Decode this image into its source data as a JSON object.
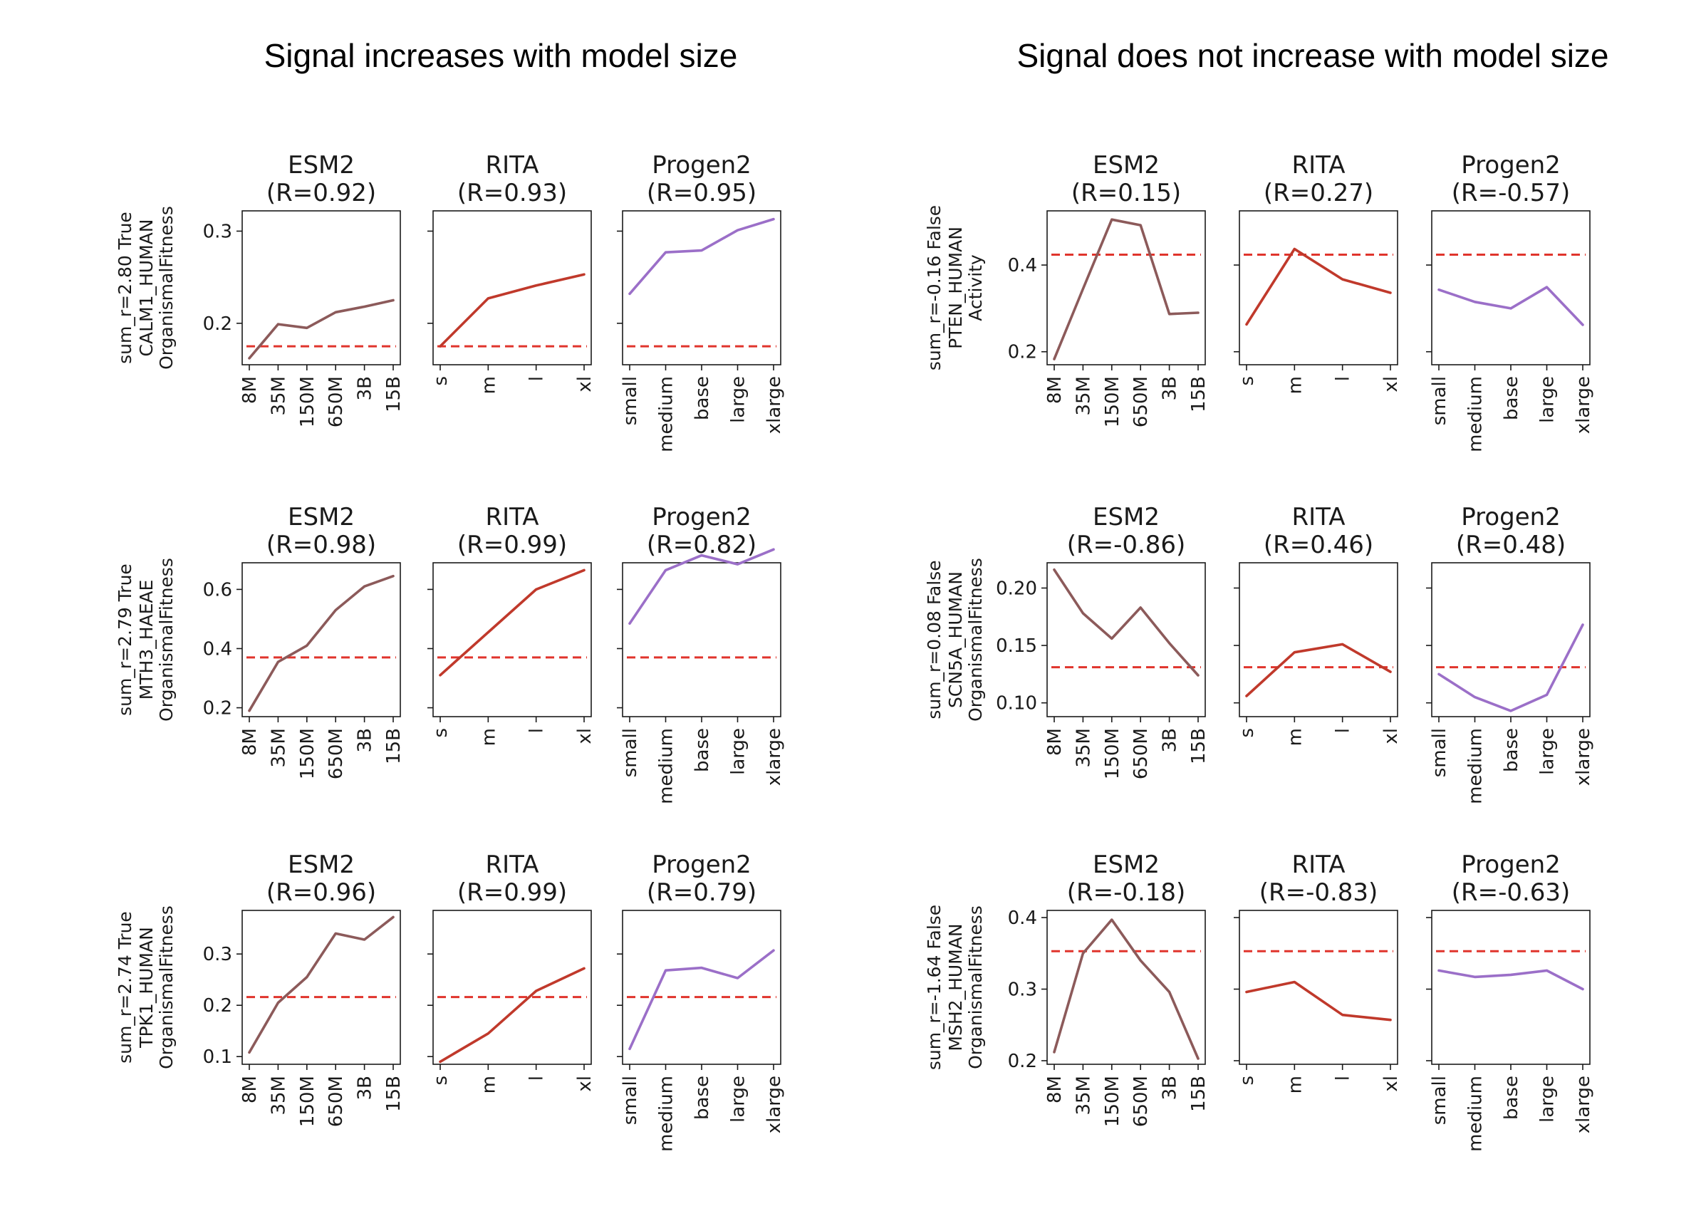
{
  "groups": [
    {
      "title": "Signal increases with model size",
      "rows": [
        {
          "label": {
            "line1": "sum_r=2.80     True",
            "line2": "CALM1_HUMAN",
            "line3": "OrganismalFitness"
          },
          "ylim": [
            0.155,
            0.322
          ],
          "yticks": [
            0.2,
            0.3
          ],
          "ytick_labels": [
            "0.2",
            "0.3"
          ],
          "threshold": 0.175,
          "panels": [
            {
              "model": "ESM2",
              "r_label": "(R=0.92)",
              "x": [
                "8M",
                "35M",
                "150M",
                "650M",
                "3B",
                "15B"
              ],
              "values": [
                0.162,
                0.199,
                0.195,
                0.212,
                0.218,
                0.225
              ]
            },
            {
              "model": "RITA",
              "r_label": "(R=0.93)",
              "x": [
                "s",
                "m",
                "l",
                "xl"
              ],
              "values": [
                0.175,
                0.227,
                0.241,
                0.253
              ]
            },
            {
              "model": "Progen2",
              "r_label": "(R=0.95)",
              "x": [
                "small",
                "medium",
                "base",
                "large",
                "xlarge"
              ],
              "values": [
                0.232,
                0.277,
                0.279,
                0.301,
                0.313
              ]
            }
          ]
        },
        {
          "label": {
            "line1": "sum_r=2.79     True",
            "line2": "MTH3_HAEAE",
            "line3": "OrganismalFitness"
          },
          "ylim": [
            0.17,
            0.69
          ],
          "yticks": [
            0.2,
            0.4,
            0.6
          ],
          "ytick_labels": [
            "0.2",
            "0.4",
            "0.6"
          ],
          "threshold": 0.37,
          "panels": [
            {
              "model": "ESM2",
              "r_label": "(R=0.98)",
              "x": [
                "8M",
                "35M",
                "150M",
                "650M",
                "3B",
                "15B"
              ],
              "values": [
                0.19,
                0.355,
                0.41,
                0.53,
                0.61,
                0.645
              ]
            },
            {
              "model": "RITA",
              "r_label": "(R=0.99)",
              "x": [
                "s",
                "m",
                "l",
                "xl"
              ],
              "values": [
                0.31,
                0.455,
                0.6,
                0.665
              ]
            },
            {
              "model": "Progen2",
              "r_label": "(R=0.82)",
              "x": [
                "small",
                "medium",
                "base",
                "large",
                "xlarge"
              ],
              "values": [
                0.485,
                0.665,
                0.715,
                0.685,
                0.735
              ]
            }
          ]
        },
        {
          "label": {
            "line1": "sum_r=2.74     True",
            "line2": "TPK1_HUMAN",
            "line3": "OrganismalFitness"
          },
          "ylim": [
            0.085,
            0.385
          ],
          "yticks": [
            0.1,
            0.2,
            0.3
          ],
          "ytick_labels": [
            "0.1",
            "0.2",
            "0.3"
          ],
          "threshold": 0.216,
          "panels": [
            {
              "model": "ESM2",
              "r_label": "(R=0.96)",
              "x": [
                "8M",
                "35M",
                "150M",
                "650M",
                "3B",
                "15B"
              ],
              "values": [
                0.108,
                0.205,
                0.255,
                0.34,
                0.328,
                0.372
              ]
            },
            {
              "model": "RITA",
              "r_label": "(R=0.99)",
              "x": [
                "s",
                "m",
                "l",
                "xl"
              ],
              "values": [
                0.09,
                0.145,
                0.228,
                0.272
              ]
            },
            {
              "model": "Progen2",
              "r_label": "(R=0.79)",
              "x": [
                "small",
                "medium",
                "base",
                "large",
                "xlarge"
              ],
              "values": [
                0.115,
                0.268,
                0.273,
                0.253,
                0.307
              ]
            }
          ]
        }
      ]
    },
    {
      "title": "Signal does not increase with model size",
      "rows": [
        {
          "label": {
            "line1": "sum_r=-0.16     False",
            "line2": "PTEN_HUMAN",
            "line3": "Activity"
          },
          "ylim": [
            0.17,
            0.525
          ],
          "yticks": [
            0.2,
            0.4
          ],
          "ytick_labels": [
            "0.2",
            "0.4"
          ],
          "threshold": 0.424,
          "panels": [
            {
              "model": "ESM2",
              "r_label": "(R=0.15)",
              "x": [
                "8M",
                "35M",
                "150M",
                "650M",
                "3B",
                "15B"
              ],
              "values": [
                0.183,
                0.345,
                0.505,
                0.492,
                0.287,
                0.29
              ]
            },
            {
              "model": "RITA",
              "r_label": "(R=0.27)",
              "x": [
                "s",
                "m",
                "l",
                "xl"
              ],
              "values": [
                0.263,
                0.437,
                0.367,
                0.336
              ]
            },
            {
              "model": "Progen2",
              "r_label": "(R=-0.57)",
              "x": [
                "small",
                "medium",
                "base",
                "large",
                "xlarge"
              ],
              "values": [
                0.343,
                0.315,
                0.3,
                0.349,
                0.262
              ]
            }
          ]
        },
        {
          "label": {
            "line1": "sum_r=0.08     False",
            "line2": "SCN5A_HUMAN",
            "line3": "OrganismalFitness"
          },
          "ylim": [
            0.088,
            0.222
          ],
          "yticks": [
            0.1,
            0.15,
            0.2
          ],
          "ytick_labels": [
            "0.10",
            "0.15",
            "0.20"
          ],
          "threshold": 0.131,
          "panels": [
            {
              "model": "ESM2",
              "r_label": "(R=-0.86)",
              "x": [
                "8M",
                "35M",
                "150M",
                "650M",
                "3B",
                "15B"
              ],
              "values": [
                0.216,
                0.178,
                0.156,
                0.183,
                0.152,
                0.124
              ]
            },
            {
              "model": "RITA",
              "r_label": "(R=0.46)",
              "x": [
                "s",
                "m",
                "l",
                "xl"
              ],
              "values": [
                0.106,
                0.144,
                0.151,
                0.127
              ]
            },
            {
              "model": "Progen2",
              "r_label": "(R=0.48)",
              "x": [
                "small",
                "medium",
                "base",
                "large",
                "xlarge"
              ],
              "values": [
                0.125,
                0.105,
                0.093,
                0.107,
                0.168
              ]
            }
          ]
        },
        {
          "label": {
            "line1": "sum_r=-1.64     False",
            "line2": "MSH2_HUMAN",
            "line3": "OrganismalFitness"
          },
          "ylim": [
            0.195,
            0.41
          ],
          "yticks": [
            0.2,
            0.3,
            0.4
          ],
          "ytick_labels": [
            "0.2",
            "0.3",
            "0.4"
          ],
          "threshold": 0.353,
          "panels": [
            {
              "model": "ESM2",
              "r_label": "(R=-0.18)",
              "x": [
                "8M",
                "35M",
                "150M",
                "650M",
                "3B",
                "15B"
              ],
              "values": [
                0.212,
                0.35,
                0.397,
                0.34,
                0.296,
                0.203
              ]
            },
            {
              "model": "RITA",
              "r_label": "(R=-0.83)",
              "x": [
                "s",
                "m",
                "l",
                "xl"
              ],
              "values": [
                0.296,
                0.31,
                0.264,
                0.257
              ]
            },
            {
              "model": "Progen2",
              "r_label": "(R=-0.63)",
              "x": [
                "small",
                "medium",
                "base",
                "large",
                "xlarge"
              ],
              "values": [
                0.326,
                0.317,
                0.32,
                0.326,
                0.3
              ]
            }
          ]
        }
      ]
    }
  ],
  "colors": {
    "ESM2": "#8c5a5a",
    "RITA": "#c0392b",
    "Progen2": "#9b6fc8",
    "threshold": "#e0342c",
    "axis": "#1a1a1a"
  },
  "chart_data": [
    {
      "type": "line",
      "title": "ESM2 (R=0.92)",
      "row": "CALM1_HUMAN OrganismalFitness",
      "categories": [
        "8M",
        "35M",
        "150M",
        "650M",
        "3B",
        "15B"
      ],
      "values": [
        0.162,
        0.199,
        0.195,
        0.212,
        0.218,
        0.225
      ],
      "hline": 0.175
    },
    {
      "type": "line",
      "title": "RITA (R=0.93)",
      "row": "CALM1_HUMAN OrganismalFitness",
      "categories": [
        "s",
        "m",
        "l",
        "xl"
      ],
      "values": [
        0.175,
        0.227,
        0.241,
        0.253
      ],
      "hline": 0.175
    },
    {
      "type": "line",
      "title": "Progen2 (R=0.95)",
      "row": "CALM1_HUMAN OrganismalFitness",
      "categories": [
        "small",
        "medium",
        "base",
        "large",
        "xlarge"
      ],
      "values": [
        0.232,
        0.277,
        0.279,
        0.301,
        0.313
      ],
      "hline": 0.175
    },
    {
      "type": "line",
      "title": "ESM2 (R=0.98)",
      "row": "MTH3_HAEAE OrganismalFitness",
      "categories": [
        "8M",
        "35M",
        "150M",
        "650M",
        "3B",
        "15B"
      ],
      "values": [
        0.19,
        0.355,
        0.41,
        0.53,
        0.61,
        0.645
      ],
      "hline": 0.37
    },
    {
      "type": "line",
      "title": "RITA (R=0.99)",
      "row": "MTH3_HAEAE OrganismalFitness",
      "categories": [
        "s",
        "m",
        "l",
        "xl"
      ],
      "values": [
        0.31,
        0.455,
        0.6,
        0.665
      ],
      "hline": 0.37
    },
    {
      "type": "line",
      "title": "Progen2 (R=0.82)",
      "row": "MTH3_HAEAE OrganismalFitness",
      "categories": [
        "small",
        "medium",
        "base",
        "large",
        "xlarge"
      ],
      "values": [
        0.485,
        0.665,
        0.715,
        0.685,
        0.735
      ],
      "hline": 0.37
    },
    {
      "type": "line",
      "title": "ESM2 (R=0.96)",
      "row": "TPK1_HUMAN OrganismalFitness",
      "categories": [
        "8M",
        "35M",
        "150M",
        "650M",
        "3B",
        "15B"
      ],
      "values": [
        0.108,
        0.205,
        0.255,
        0.34,
        0.328,
        0.372
      ],
      "hline": 0.216
    },
    {
      "type": "line",
      "title": "RITA (R=0.99)",
      "row": "TPK1_HUMAN OrganismalFitness",
      "categories": [
        "s",
        "m",
        "l",
        "xl"
      ],
      "values": [
        0.09,
        0.145,
        0.228,
        0.272
      ],
      "hline": 0.216
    },
    {
      "type": "line",
      "title": "Progen2 (R=0.79)",
      "row": "TPK1_HUMAN OrganismalFitness",
      "categories": [
        "small",
        "medium",
        "base",
        "large",
        "xlarge"
      ],
      "values": [
        0.115,
        0.268,
        0.273,
        0.253,
        0.307
      ],
      "hline": 0.216
    },
    {
      "type": "line",
      "title": "ESM2 (R=0.15)",
      "row": "PTEN_HUMAN Activity",
      "categories": [
        "8M",
        "35M",
        "150M",
        "650M",
        "3B",
        "15B"
      ],
      "values": [
        0.183,
        0.345,
        0.505,
        0.492,
        0.287,
        0.29
      ],
      "hline": 0.424
    },
    {
      "type": "line",
      "title": "RITA (R=0.27)",
      "row": "PTEN_HUMAN Activity",
      "categories": [
        "s",
        "m",
        "l",
        "xl"
      ],
      "values": [
        0.263,
        0.437,
        0.367,
        0.336
      ],
      "hline": 0.424
    },
    {
      "type": "line",
      "title": "Progen2 (R=-0.57)",
      "row": "PTEN_HUMAN Activity",
      "categories": [
        "small",
        "medium",
        "base",
        "large",
        "xlarge"
      ],
      "values": [
        0.343,
        0.315,
        0.3,
        0.349,
        0.262
      ],
      "hline": 0.424
    },
    {
      "type": "line",
      "title": "ESM2 (R=-0.86)",
      "row": "SCN5A_HUMAN OrganismalFitness",
      "categories": [
        "8M",
        "35M",
        "150M",
        "650M",
        "3B",
        "15B"
      ],
      "values": [
        0.216,
        0.178,
        0.156,
        0.183,
        0.152,
        0.124
      ],
      "hline": 0.131
    },
    {
      "type": "line",
      "title": "RITA (R=0.46)",
      "row": "SCN5A_HUMAN OrganismalFitness",
      "categories": [
        "s",
        "m",
        "l",
        "xl"
      ],
      "values": [
        0.106,
        0.144,
        0.151,
        0.127
      ],
      "hline": 0.131
    },
    {
      "type": "line",
      "title": "Progen2 (R=0.48)",
      "row": "SCN5A_HUMAN OrganismalFitness",
      "categories": [
        "small",
        "medium",
        "base",
        "large",
        "xlarge"
      ],
      "values": [
        0.125,
        0.105,
        0.093,
        0.107,
        0.168
      ],
      "hline": 0.131
    },
    {
      "type": "line",
      "title": "ESM2 (R=-0.18)",
      "row": "MSH2_HUMAN OrganismalFitness",
      "categories": [
        "8M",
        "35M",
        "150M",
        "650M",
        "3B",
        "15B"
      ],
      "values": [
        0.212,
        0.35,
        0.397,
        0.34,
        0.296,
        0.203
      ],
      "hline": 0.353
    },
    {
      "type": "line",
      "title": "RITA (R=-0.83)",
      "row": "MSH2_HUMAN OrganismalFitness",
      "categories": [
        "s",
        "m",
        "l",
        "xl"
      ],
      "values": [
        0.296,
        0.31,
        0.264,
        0.257
      ],
      "hline": 0.353
    },
    {
      "type": "line",
      "title": "Progen2 (R=-0.63)",
      "row": "MSH2_HUMAN OrganismalFitness",
      "categories": [
        "small",
        "medium",
        "base",
        "large",
        "xlarge"
      ],
      "values": [
        0.326,
        0.317,
        0.32,
        0.326,
        0.3
      ],
      "hline": 0.353
    }
  ]
}
